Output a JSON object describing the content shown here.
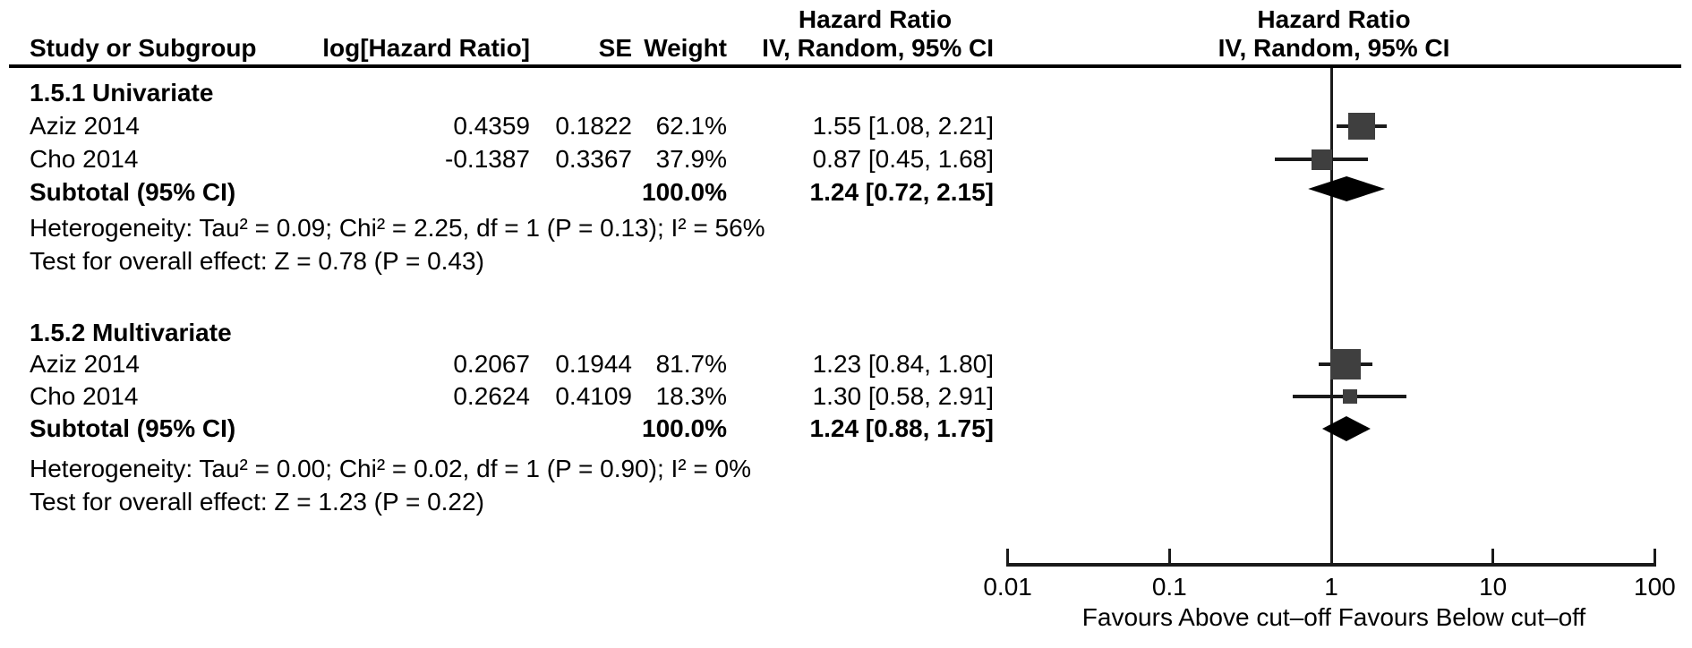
{
  "figure": {
    "background": "#ffffff",
    "text_color": "#000000",
    "marker_color": "#3f3f3f",
    "diamond_color": "#000000"
  },
  "header": {
    "effect_title_left": "Hazard Ratio",
    "effect_title_right": "Hazard Ratio",
    "col_study": "Study or Subgroup",
    "col_loghr": "log[Hazard Ratio]",
    "col_se": "SE",
    "col_weight": "Weight",
    "col_ci_left": "IV, Random, 95% CI",
    "col_ci_right": "IV, Random, 95% CI"
  },
  "table": {
    "groups": [
      {
        "label": "1.5.1 Univariate",
        "rows": [
          {
            "study": "Aziz 2014",
            "loghr": "0.4359",
            "se": "0.1822",
            "weight": "62.1%",
            "ci": "1.55 [1.08, 2.21]"
          },
          {
            "study": "Cho 2014",
            "loghr": "-0.1387",
            "se": "0.3367",
            "weight": "37.9%",
            "ci": "0.87 [0.45, 1.68]"
          }
        ],
        "subtotal": {
          "label": "Subtotal (95% CI)",
          "weight": "100.0%",
          "ci": "1.24 [0.72, 2.15]"
        },
        "heterogeneity": "Heterogeneity: Tau² = 0.09; Chi² = 2.25, df = 1 (P = 0.13); I² = 56%",
        "overall_test": "Test for overall effect: Z = 0.78 (P = 0.43)"
      },
      {
        "label": "1.5.2 Multivariate",
        "rows": [
          {
            "study": "Aziz 2014",
            "loghr": "0.2067",
            "se": "0.1944",
            "weight": "81.7%",
            "ci": "1.23 [0.84, 1.80]"
          },
          {
            "study": "Cho 2014",
            "loghr": "0.2624",
            "se": "0.4109",
            "weight": "18.3%",
            "ci": "1.30 [0.58, 2.91]"
          }
        ],
        "subtotal": {
          "label": "Subtotal (95% CI)",
          "weight": "100.0%",
          "ci": "1.24 [0.88, 1.75]"
        },
        "heterogeneity": "Heterogeneity: Tau² = 0.00; Chi² = 0.02, df = 1 (P = 0.90); I² = 0%",
        "overall_test": "Test for overall effect: Z = 1.23 (P = 0.22)"
      }
    ]
  },
  "chart_data": {
    "type": "forest",
    "x_scale": "log",
    "xlim": [
      0.01,
      100
    ],
    "ticks": [
      0.01,
      0.1,
      1,
      10,
      100
    ],
    "null_line": 1,
    "effect_measure": "Hazard Ratio, IV, Random, 95% CI",
    "footer_left": "Favours Above cut–off",
    "footer_right": "Favours Below cut–off",
    "groups": [
      {
        "name": "1.5.1 Univariate",
        "studies": [
          {
            "name": "Aziz 2014",
            "hr": 1.55,
            "lo": 1.08,
            "hi": 2.21,
            "weight_pct": 62.1
          },
          {
            "name": "Cho 2014",
            "hr": 0.87,
            "lo": 0.45,
            "hi": 1.68,
            "weight_pct": 37.9
          }
        ],
        "subtotal": {
          "hr": 1.24,
          "lo": 0.72,
          "hi": 2.15
        }
      },
      {
        "name": "1.5.2 Multivariate",
        "studies": [
          {
            "name": "Aziz 2014",
            "hr": 1.23,
            "lo": 0.84,
            "hi": 1.8,
            "weight_pct": 81.7
          },
          {
            "name": "Cho 2014",
            "hr": 1.3,
            "lo": 0.58,
            "hi": 2.91,
            "weight_pct": 18.3
          }
        ],
        "subtotal": {
          "hr": 1.24,
          "lo": 0.88,
          "hi": 1.75
        }
      }
    ]
  }
}
